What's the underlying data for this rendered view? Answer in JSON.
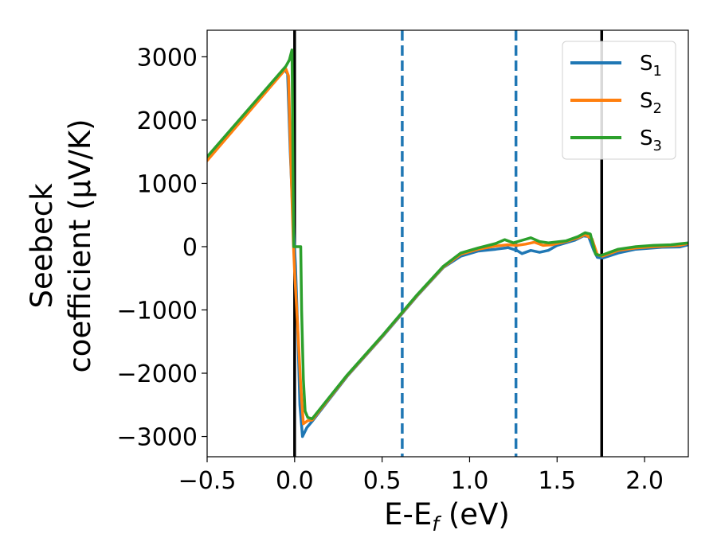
{
  "chart_data": {
    "type": "line",
    "title": "",
    "xlabel_parts": {
      "main": "E-E",
      "sub": "f",
      "unit": " (eV)"
    },
    "ylabel_lines": [
      "Seebeck",
      "coefficient  (μV/K)"
    ],
    "xlim": [
      -0.5,
      2.25
    ],
    "ylim": [
      -3320,
      3420
    ],
    "x_ticks": [
      -0.5,
      0.0,
      0.5,
      1.0,
      1.5,
      2.0
    ],
    "x_tick_labels": [
      "−0.5",
      "0.0",
      "0.5",
      "1.0",
      "1.5",
      "2.0"
    ],
    "y_ticks": [
      3000,
      2000,
      1000,
      0,
      -1000,
      -2000,
      -3000
    ],
    "y_tick_labels": [
      "3000",
      "2000",
      "1000",
      "0",
      "−1000",
      "−2000",
      "−3000"
    ],
    "grid": false,
    "legend_position": "top-right",
    "vertical_lines": [
      {
        "x": 0.0,
        "style": "solid",
        "color": "#000000"
      },
      {
        "x": 0.615,
        "style": "dashed",
        "color": "#1f77b4"
      },
      {
        "x": 1.265,
        "style": "dashed",
        "color": "#1f77b4"
      },
      {
        "x": 1.755,
        "style": "solid",
        "color": "#000000"
      }
    ],
    "series": [
      {
        "name_main": "S",
        "name_sub": "1",
        "color": "#1f77b4",
        "points": [
          [
            -0.5,
            1380
          ],
          [
            -0.06,
            2810
          ],
          [
            -0.04,
            2730
          ],
          [
            -0.025,
            1500
          ],
          [
            -0.01,
            500
          ],
          [
            0.005,
            -300
          ],
          [
            0.02,
            -1500
          ],
          [
            0.03,
            -2500
          ],
          [
            0.045,
            -3000
          ],
          [
            0.07,
            -2860
          ],
          [
            0.1,
            -2760
          ],
          [
            0.3,
            -2050
          ],
          [
            0.5,
            -1430
          ],
          [
            0.7,
            -780
          ],
          [
            0.85,
            -330
          ],
          [
            0.95,
            -150
          ],
          [
            1.05,
            -70
          ],
          [
            1.15,
            -40
          ],
          [
            1.22,
            -15
          ],
          [
            1.27,
            -60
          ],
          [
            1.3,
            -110
          ],
          [
            1.35,
            -60
          ],
          [
            1.4,
            -90
          ],
          [
            1.45,
            -60
          ],
          [
            1.5,
            20
          ],
          [
            1.6,
            100
          ],
          [
            1.65,
            170
          ],
          [
            1.68,
            160
          ],
          [
            1.71,
            -60
          ],
          [
            1.73,
            -170
          ],
          [
            1.76,
            -180
          ],
          [
            1.85,
            -100
          ],
          [
            1.95,
            -40
          ],
          [
            2.1,
            -10
          ],
          [
            2.2,
            -5
          ],
          [
            2.25,
            30
          ]
        ]
      },
      {
        "name_main": "S",
        "name_sub": "2",
        "color": "#ff7f0e",
        "points": [
          [
            -0.5,
            1360
          ],
          [
            -0.05,
            2810
          ],
          [
            -0.035,
            2700
          ],
          [
            -0.02,
            1200
          ],
          [
            -0.008,
            100
          ],
          [
            0.0,
            -400
          ],
          [
            0.02,
            -1400
          ],
          [
            0.035,
            -2200
          ],
          [
            0.05,
            -2800
          ],
          [
            0.075,
            -2750
          ],
          [
            0.1,
            -2740
          ],
          [
            0.3,
            -2040
          ],
          [
            0.5,
            -1420
          ],
          [
            0.7,
            -770
          ],
          [
            0.85,
            -320
          ],
          [
            0.95,
            -120
          ],
          [
            1.05,
            -40
          ],
          [
            1.15,
            10
          ],
          [
            1.22,
            30
          ],
          [
            1.27,
            20
          ],
          [
            1.32,
            40
          ],
          [
            1.37,
            70
          ],
          [
            1.42,
            20
          ],
          [
            1.47,
            30
          ],
          [
            1.55,
            80
          ],
          [
            1.62,
            140
          ],
          [
            1.66,
            190
          ],
          [
            1.7,
            120
          ],
          [
            1.73,
            -130
          ],
          [
            1.76,
            -150
          ],
          [
            1.85,
            -60
          ],
          [
            1.95,
            -20
          ],
          [
            2.05,
            0
          ],
          [
            2.2,
            20
          ],
          [
            2.25,
            50
          ]
        ]
      },
      {
        "name_main": "S",
        "name_sub": "3",
        "color": "#2ca02c",
        "points": [
          [
            -0.5,
            1420
          ],
          [
            -0.05,
            2850
          ],
          [
            -0.03,
            2950
          ],
          [
            -0.015,
            3110
          ],
          [
            -0.005,
            0
          ],
          [
            0.035,
            0
          ],
          [
            0.04,
            -1000
          ],
          [
            0.05,
            -2100
          ],
          [
            0.06,
            -2600
          ],
          [
            0.075,
            -2700
          ],
          [
            0.1,
            -2720
          ],
          [
            0.3,
            -2030
          ],
          [
            0.5,
            -1410
          ],
          [
            0.7,
            -760
          ],
          [
            0.85,
            -310
          ],
          [
            0.95,
            -100
          ],
          [
            1.05,
            -20
          ],
          [
            1.15,
            50
          ],
          [
            1.2,
            110
          ],
          [
            1.25,
            60
          ],
          [
            1.3,
            100
          ],
          [
            1.35,
            140
          ],
          [
            1.4,
            80
          ],
          [
            1.45,
            60
          ],
          [
            1.55,
            90
          ],
          [
            1.62,
            160
          ],
          [
            1.66,
            220
          ],
          [
            1.69,
            200
          ],
          [
            1.72,
            -120
          ],
          [
            1.75,
            -140
          ],
          [
            1.85,
            -40
          ],
          [
            1.95,
            0
          ],
          [
            2.05,
            20
          ],
          [
            2.15,
            30
          ],
          [
            2.25,
            60
          ]
        ]
      }
    ]
  }
}
